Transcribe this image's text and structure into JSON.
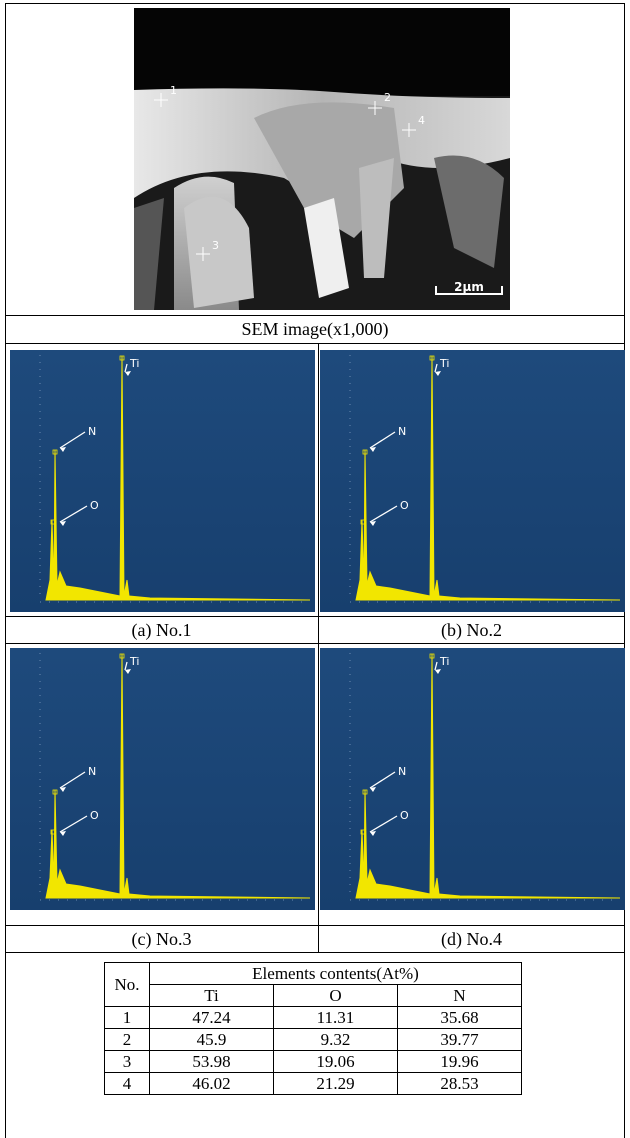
{
  "sem": {
    "points": [
      "1",
      "2",
      "3",
      "4"
    ],
    "scale_bar": "2μm",
    "caption": "SEM  image(x1,000)"
  },
  "spectra": [
    {
      "caption": "(a)  No.1",
      "peaks": [
        "Ti",
        "N",
        "O"
      ]
    },
    {
      "caption": "(b)  No.2",
      "peaks": [
        "Ti",
        "N",
        "O"
      ]
    },
    {
      "caption": "(c)  No.3",
      "peaks": [
        "Ti",
        "N",
        "O"
      ]
    },
    {
      "caption": "(d)  No.4",
      "peaks": [
        "Ti",
        "N",
        "O"
      ]
    }
  ],
  "table": {
    "header": [
      "No.",
      "Elements  contents(At%)"
    ],
    "subheader": [
      "Ti",
      "O",
      "N"
    ],
    "rows": [
      [
        1,
        47.24,
        11.31,
        35.68
      ],
      [
        2,
        45.9,
        9.32,
        39.77
      ],
      [
        3,
        53.98,
        19.06,
        19.96
      ],
      [
        4,
        46.02,
        21.29,
        28.53
      ]
    ]
  }
}
